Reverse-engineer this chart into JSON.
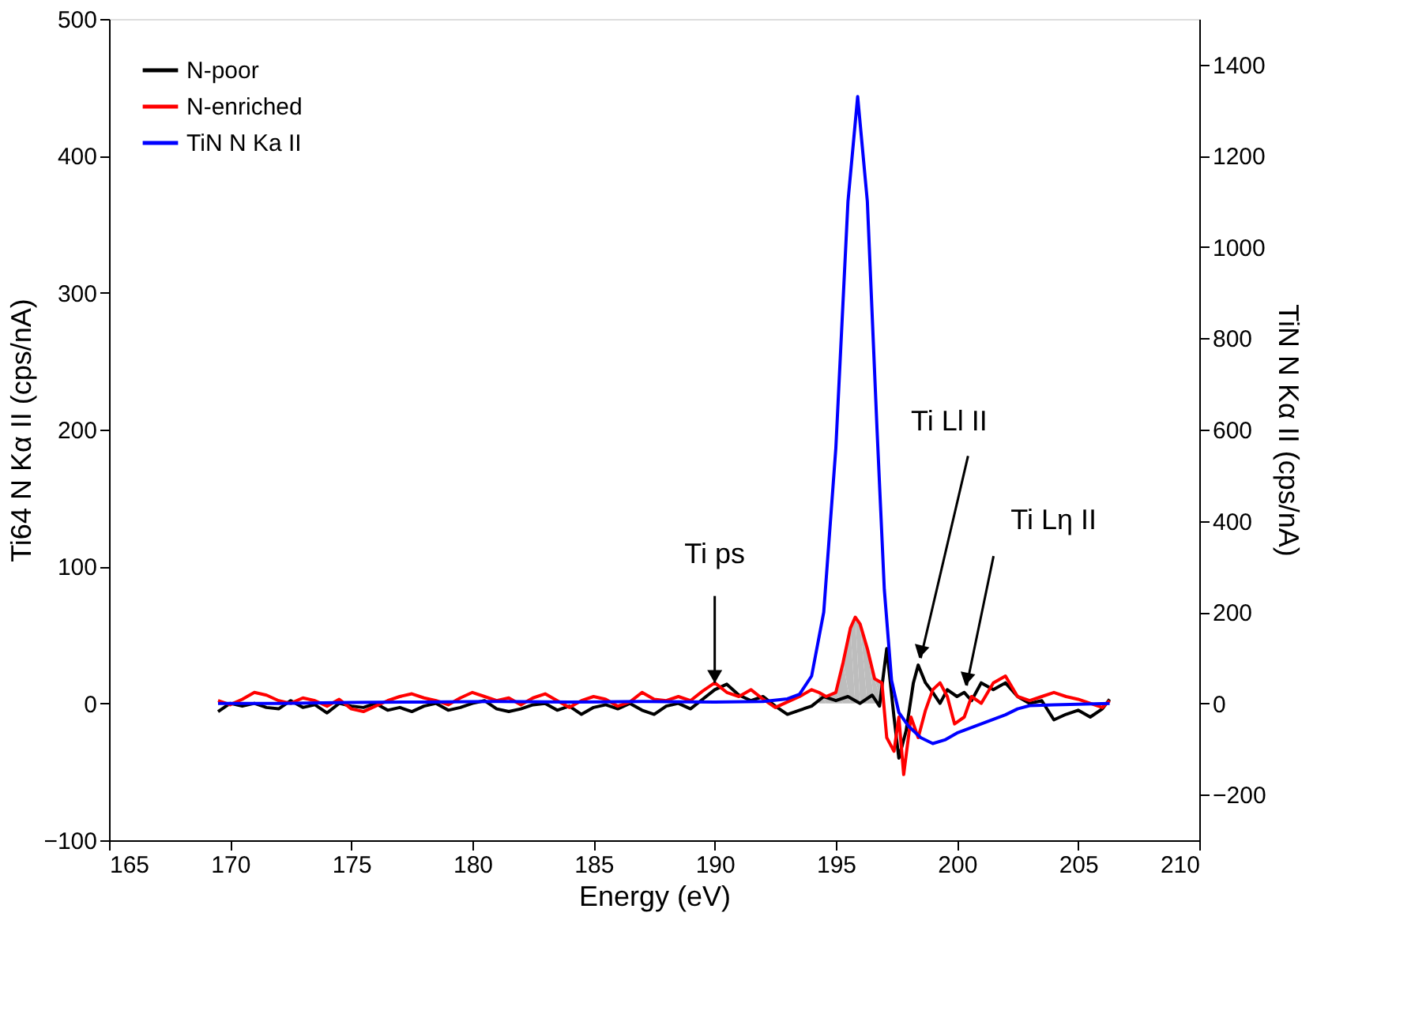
{
  "chart_data": {
    "type": "line",
    "xlabel": "Energy (eV)",
    "ylabel": "Ti64 N Kα II (cps/nA)",
    "y2label": "TiN N Kα II (cps/nA)",
    "xlim": [
      165,
      210
    ],
    "xticks": [
      165,
      170,
      175,
      180,
      185,
      190,
      195,
      200,
      205,
      210
    ],
    "ylim": [
      -100,
      500
    ],
    "yticks": [
      -100,
      0,
      100,
      200,
      300,
      400,
      500
    ],
    "y2lim": [
      -300,
      1500
    ],
    "y2ticks": [
      -200,
      0,
      200,
      400,
      600,
      800,
      1000,
      1200,
      1400
    ],
    "grid": false,
    "legend": "top left",
    "line_style": "solid",
    "marker": "none",
    "annotations": [
      {
        "text": "Ti ps",
        "x": 190,
        "y": 15
      },
      {
        "text": "Ti Ll II",
        "x": 198.5,
        "y": 33
      },
      {
        "text": "Ti Lη II",
        "x": 200.4,
        "y": 13
      }
    ],
    "series": [
      {
        "type": "area",
        "color": "#bdbdbd",
        "x": [
          194.3,
          194.6,
          195,
          195.3,
          195.6,
          195.8,
          196,
          196.3,
          196.6,
          196.9
        ],
        "values": [
          8,
          5,
          8,
          30,
          55,
          63,
          58,
          40,
          18,
          15
        ]
      },
      {
        "name": "N-poor",
        "color": "#000000",
        "x": [
          169.5,
          170,
          170.5,
          171,
          171.5,
          172,
          172.5,
          173,
          173.5,
          174,
          174.5,
          175,
          175.5,
          176,
          176.5,
          177,
          177.5,
          178,
          178.5,
          179,
          179.5,
          180,
          180.5,
          181,
          181.5,
          182,
          182.5,
          183,
          183.5,
          184,
          184.5,
          185,
          185.5,
          186,
          186.5,
          187,
          187.5,
          188,
          188.5,
          189,
          189.5,
          190,
          190.5,
          191,
          191.5,
          192,
          192.5,
          193,
          193.5,
          194,
          194.5,
          195,
          195.5,
          196,
          196.5,
          196.8,
          197.1,
          197.4,
          197.6,
          197.9,
          198.2,
          198.4,
          198.7,
          199,
          199.3,
          199.6,
          200,
          200.3,
          200.6,
          201,
          201.5,
          202,
          202.5,
          203,
          203.5,
          204,
          204.5,
          205,
          205.5,
          206,
          206.3
        ],
        "values": [
          -6,
          0,
          -2,
          0,
          -3,
          -4,
          2,
          -3,
          -1,
          -7,
          0,
          -2,
          -3,
          0,
          -5,
          -3,
          -6,
          -2,
          0,
          -5,
          -3,
          0,
          2,
          -4,
          -6,
          -4,
          -1,
          0,
          -5,
          -2,
          -8,
          -3,
          -1,
          -4,
          0,
          -5,
          -8,
          -2,
          0,
          -4,
          3,
          10,
          14,
          6,
          2,
          5,
          -2,
          -8,
          -5,
          -2,
          5,
          2,
          5,
          0,
          6,
          -2,
          40,
          -10,
          -40,
          -20,
          15,
          28,
          15,
          8,
          0,
          10,
          5,
          8,
          2,
          15,
          10,
          15,
          5,
          0,
          2,
          -12,
          -8,
          -5,
          -10,
          -4,
          3
        ]
      },
      {
        "name": "N-enriched",
        "color": "#ff0000",
        "x": [
          169.5,
          170,
          170.5,
          171,
          171.5,
          172,
          172.5,
          173,
          173.5,
          174,
          174.5,
          175,
          175.5,
          176,
          176.5,
          177,
          177.5,
          178,
          178.5,
          179,
          179.5,
          180,
          180.5,
          181,
          181.5,
          182,
          182.5,
          183,
          183.5,
          184,
          184.5,
          185,
          185.5,
          186,
          186.5,
          187,
          187.5,
          188,
          188.5,
          189,
          189.5,
          190,
          190.5,
          191,
          191.5,
          192,
          192.5,
          193,
          193.5,
          194,
          194.3,
          194.6,
          195,
          195.3,
          195.6,
          195.8,
          196,
          196.3,
          196.6,
          196.9,
          197.1,
          197.4,
          197.6,
          197.8,
          198.1,
          198.4,
          198.7,
          199,
          199.3,
          199.6,
          199.9,
          200.3,
          200.6,
          201,
          201.5,
          202,
          202.5,
          203,
          203.5,
          204,
          204.5,
          205,
          205.5,
          206,
          206.3
        ],
        "values": [
          2,
          -1,
          3,
          8,
          6,
          2,
          0,
          4,
          2,
          -2,
          3,
          -4,
          -6,
          -2,
          2,
          5,
          7,
          4,
          2,
          -1,
          4,
          8,
          5,
          2,
          4,
          -1,
          4,
          7,
          2,
          -3,
          2,
          5,
          3,
          -2,
          1,
          8,
          3,
          2,
          5,
          2,
          9,
          15,
          8,
          5,
          10,
          3,
          -3,
          1,
          5,
          10,
          8,
          5,
          8,
          30,
          55,
          63,
          58,
          40,
          18,
          15,
          -25,
          -35,
          -10,
          -52,
          -10,
          -25,
          -5,
          10,
          15,
          5,
          -15,
          -10,
          5,
          0,
          15,
          20,
          5,
          2,
          5,
          8,
          5,
          3,
          0,
          -3,
          2
        ]
      },
      {
        "name": "TiN N Ka II",
        "color": "#0000ff",
        "axis": "y2",
        "x": [
          169.5,
          172,
          175,
          178,
          181,
          184,
          187,
          190,
          192,
          193,
          193.5,
          194,
          194.5,
          195,
          195.5,
          195.9,
          196.3,
          196.7,
          197,
          197.3,
          197.6,
          198,
          198.5,
          199,
          199.5,
          200,
          200.5,
          201,
          201.5,
          202,
          202.5,
          203,
          204,
          205,
          206.3
        ],
        "values": [
          0,
          0,
          2,
          3,
          4,
          3,
          4,
          3,
          4,
          10,
          20,
          60,
          200,
          560,
          1100,
          1330,
          1100,
          600,
          250,
          50,
          -20,
          -50,
          -75,
          -88,
          -80,
          -65,
          -55,
          -45,
          -35,
          -25,
          -12,
          -5,
          -3,
          -2,
          0
        ]
      }
    ]
  }
}
